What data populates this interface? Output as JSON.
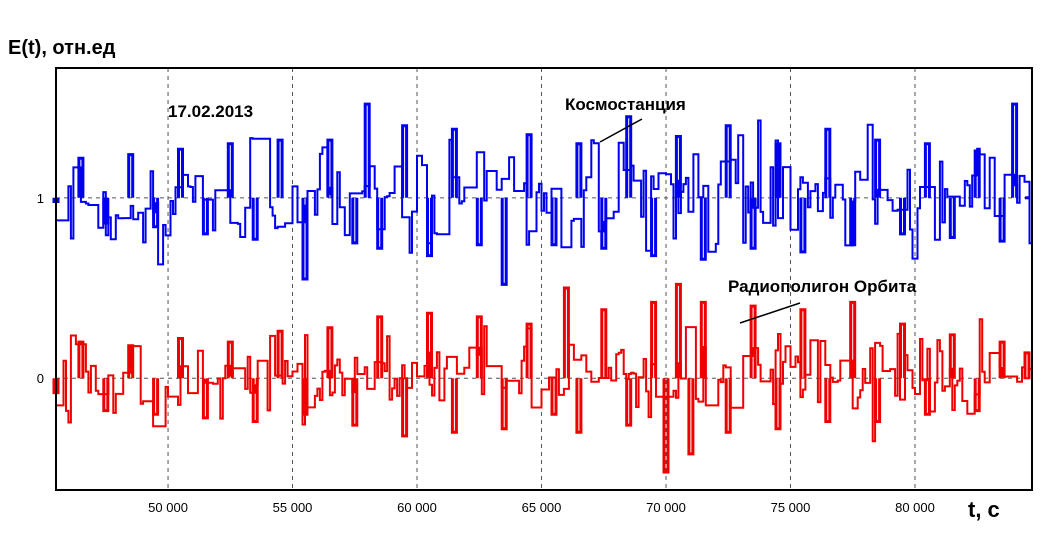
{
  "chart_data": {
    "type": "line",
    "ylabel": "E(t), отн.ед",
    "xlabel": "t, c",
    "date": "17.02.2013",
    "xlim": [
      45500,
      84700
    ],
    "ylim": [
      -0.62,
      1.72
    ],
    "x_ticks": [
      50000,
      55000,
      60000,
      65000,
      70000,
      75000,
      80000
    ],
    "x_tick_labels": [
      "50 000",
      "55 000",
      "60 000",
      "65 000",
      "70 000",
      "75 000",
      "80 000"
    ],
    "y_ticks": [
      0,
      1
    ],
    "y_tick_labels": [
      "0",
      "1"
    ],
    "grid": {
      "x": true,
      "y": true,
      "style": "dashed"
    },
    "series": [
      {
        "name": "Космостанция",
        "color": "#0000ee",
        "baseline": 1.0,
        "x": [
          45500,
          46500,
          47500,
          48500,
          49500,
          50500,
          51500,
          52500,
          53500,
          54500,
          55500,
          56500,
          57500,
          58000,
          58500,
          59500,
          60500,
          61500,
          62500,
          63500,
          64500,
          65500,
          66500,
          67500,
          68500,
          69500,
          70500,
          71500,
          72500,
          73500,
          74500,
          75500,
          76500,
          77500,
          78500,
          79500,
          80500,
          81500,
          82500,
          83500,
          84000,
          84500
        ],
        "values": [
          0.98,
          1.22,
          0.86,
          1.24,
          0.84,
          1.27,
          0.8,
          1.3,
          0.77,
          1.32,
          0.55,
          1.32,
          0.75,
          1.52,
          0.72,
          1.4,
          0.68,
          1.38,
          0.74,
          0.52,
          1.35,
          0.74,
          1.3,
          0.72,
          1.45,
          0.68,
          1.34,
          0.66,
          1.4,
          0.72,
          1.3,
          0.7,
          1.38,
          0.74,
          1.32,
          0.8,
          1.3,
          0.78,
          1.26,
          0.76,
          1.52,
          1.0
        ]
      },
      {
        "name": "Радиополигон Орбита",
        "color": "#ee0000",
        "baseline": 0.0,
        "x": [
          45500,
          46500,
          47500,
          48500,
          49500,
          50500,
          51500,
          52500,
          53500,
          54500,
          55500,
          56500,
          57500,
          58500,
          59500,
          60500,
          61500,
          62500,
          63500,
          64500,
          65500,
          66000,
          66500,
          67500,
          68500,
          69500,
          70000,
          70500,
          71000,
          71500,
          72500,
          73500,
          74500,
          75500,
          76500,
          77500,
          78500,
          79500,
          80500,
          81500,
          82500,
          83500,
          84500
        ],
        "values": [
          -0.08,
          0.2,
          -0.18,
          0.18,
          -0.2,
          0.22,
          -0.22,
          0.2,
          -0.24,
          0.26,
          -0.2,
          0.28,
          -0.26,
          0.34,
          -0.32,
          0.36,
          -0.3,
          0.34,
          -0.28,
          0.3,
          -0.2,
          0.5,
          -0.3,
          0.38,
          -0.26,
          0.42,
          -0.52,
          0.52,
          -0.42,
          0.42,
          -0.3,
          0.4,
          -0.28,
          0.38,
          -0.24,
          0.42,
          -0.24,
          0.3,
          -0.2,
          0.24,
          -0.18,
          0.2,
          0.14
        ]
      }
    ],
    "annotations": [
      "Космостанция",
      "Радиополигон Орбита"
    ]
  }
}
